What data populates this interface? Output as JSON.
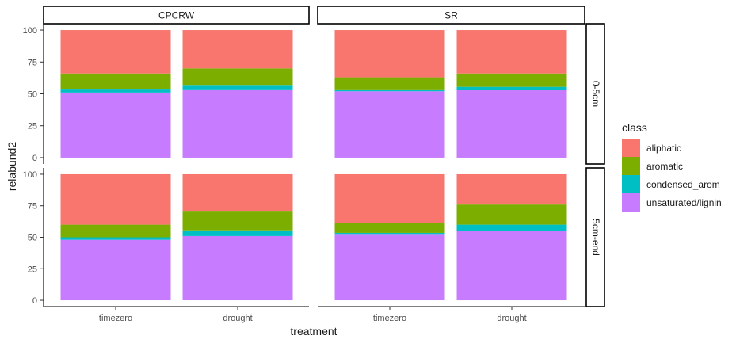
{
  "chart_data": {
    "type": "bar",
    "stacked": true,
    "xlabel": "treatment",
    "ylabel": "relabund2",
    "ylim": [
      0,
      100
    ],
    "yticks": [
      0,
      25,
      50,
      75,
      100
    ],
    "facet_columns": [
      "CPCRW",
      "SR"
    ],
    "facet_rows": [
      "0-5cm",
      "5cm-end"
    ],
    "categories": [
      "timezero",
      "drought"
    ],
    "legend": {
      "title": "class",
      "position": "right",
      "entries": [
        {
          "name": "aliphatic",
          "color": "#F8766D"
        },
        {
          "name": "aromatic",
          "color": "#7CAE00"
        },
        {
          "name": "condensed_arom",
          "color": "#00BFC4"
        },
        {
          "name": "unsaturated/lignin",
          "color": "#C77CFF"
        }
      ]
    },
    "grid": false,
    "panels": [
      {
        "column": "CPCRW",
        "row": "0-5cm",
        "bars": [
          {
            "category": "timezero",
            "unsaturated/lignin": 51,
            "condensed_arom": 3,
            "aromatic": 12,
            "aliphatic": 34
          },
          {
            "category": "drought",
            "unsaturated/lignin": 53.5,
            "condensed_arom": 3.5,
            "aromatic": 13,
            "aliphatic": 30
          }
        ]
      },
      {
        "column": "SR",
        "row": "0-5cm",
        "bars": [
          {
            "category": "timezero",
            "unsaturated/lignin": 52,
            "condensed_arom": 1.5,
            "aromatic": 9.5,
            "aliphatic": 37
          },
          {
            "category": "drought",
            "unsaturated/lignin": 53,
            "condensed_arom": 2.5,
            "aromatic": 10.5,
            "aliphatic": 34
          }
        ]
      },
      {
        "column": "CPCRW",
        "row": "5cm-end",
        "bars": [
          {
            "category": "timezero",
            "unsaturated/lignin": 48,
            "condensed_arom": 2,
            "aromatic": 10,
            "aliphatic": 40
          },
          {
            "category": "drought",
            "unsaturated/lignin": 51,
            "condensed_arom": 4.5,
            "aromatic": 15.5,
            "aliphatic": 29
          }
        ]
      },
      {
        "column": "SR",
        "row": "5cm-end",
        "bars": [
          {
            "category": "timezero",
            "unsaturated/lignin": 52,
            "condensed_arom": 1.5,
            "aromatic": 7.5,
            "aliphatic": 39
          },
          {
            "category": "drought",
            "unsaturated/lignin": 55,
            "condensed_arom": 5,
            "aromatic": 16,
            "aliphatic": 24
          }
        ]
      }
    ]
  }
}
